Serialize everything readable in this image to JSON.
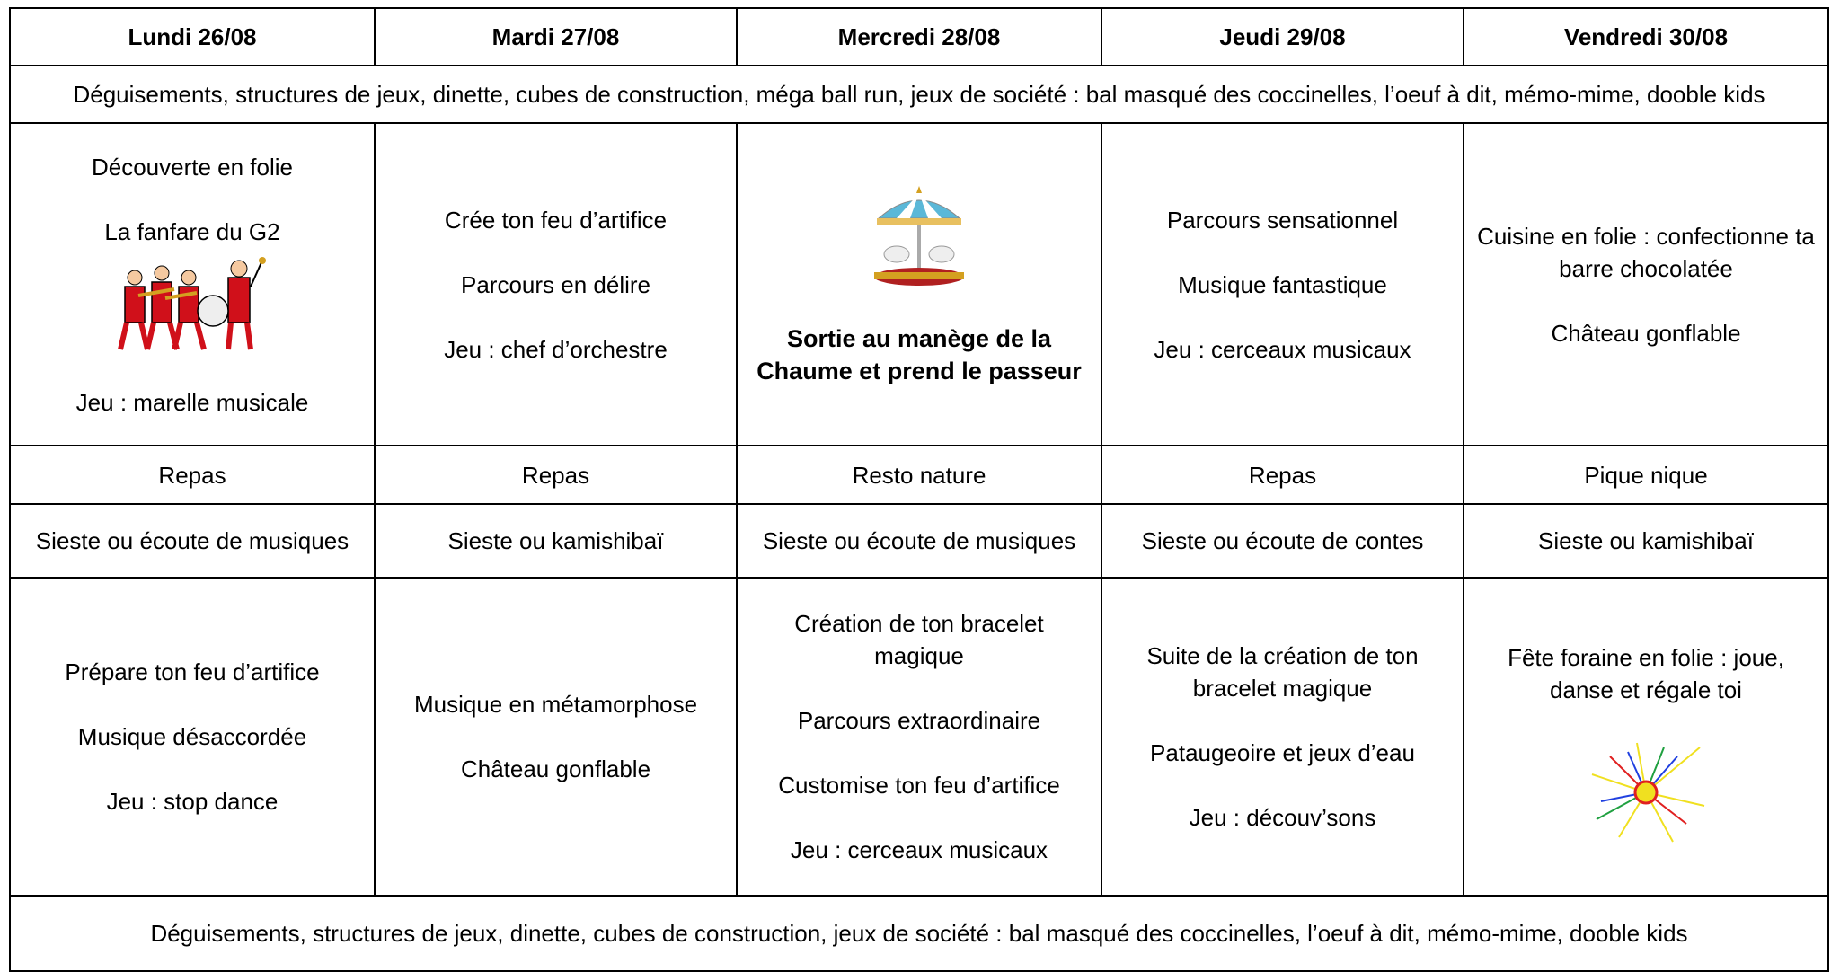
{
  "header": {
    "days": [
      "Lundi 26/08",
      "Mardi 27/08",
      "Mercredi 28/08",
      "Jeudi 29/08",
      "Vendredi 30/08"
    ]
  },
  "morning_free": "Déguisements, structures de jeux, dinette, cubes de construction, méga ball run, jeux de société : bal masqué des coccinelles, l’oeuf à dit, mémo-mime, dooble kids",
  "morning": [
    [
      "Découverte en folie",
      "La fanfare du G2",
      "Jeu : marelle musicale"
    ],
    [
      "Crée ton feu d’artifice",
      "Parcours en délire",
      "Jeu : chef d’orchestre"
    ],
    [
      "Sortie au manège de la Chaume et prend le passeur"
    ],
    [
      "Parcours sensationnel",
      "Musique fantastique",
      "Jeu : cerceaux musicaux"
    ],
    [
      "Cuisine en folie : confectionne ta barre chocolatée",
      "Château gonflable"
    ]
  ],
  "lunch": [
    "Repas",
    "Repas",
    "Resto nature",
    "Repas",
    "Pique nique"
  ],
  "nap": [
    "Sieste ou écoute de musiques",
    "Sieste ou kamishibaï",
    "Sieste ou écoute de musiques",
    "Sieste ou écoute de contes",
    "Sieste ou kamishibaï"
  ],
  "afternoon": [
    [
      "Prépare ton feu d’artifice",
      "Musique désaccordée",
      "Jeu : stop dance"
    ],
    [
      "Musique en métamorphose",
      "Château gonflable"
    ],
    [
      "Création de ton bracelet magique",
      "Parcours extraordinaire",
      "Customise ton feu d’artifice",
      "Jeu : cerceaux musicaux"
    ],
    [
      "Suite de la création de ton bracelet magique",
      "Pataugeoire et jeux d’eau",
      "Jeu : découv’sons"
    ],
    [
      "Fête foraine en folie : joue, danse et régale toi"
    ]
  ],
  "afternoon_free": "Déguisements, structures de jeux, dinette, cubes de construction, jeux de société : bal masqué des coccinelles, l’oeuf à dit, mémo-mime, dooble kids"
}
